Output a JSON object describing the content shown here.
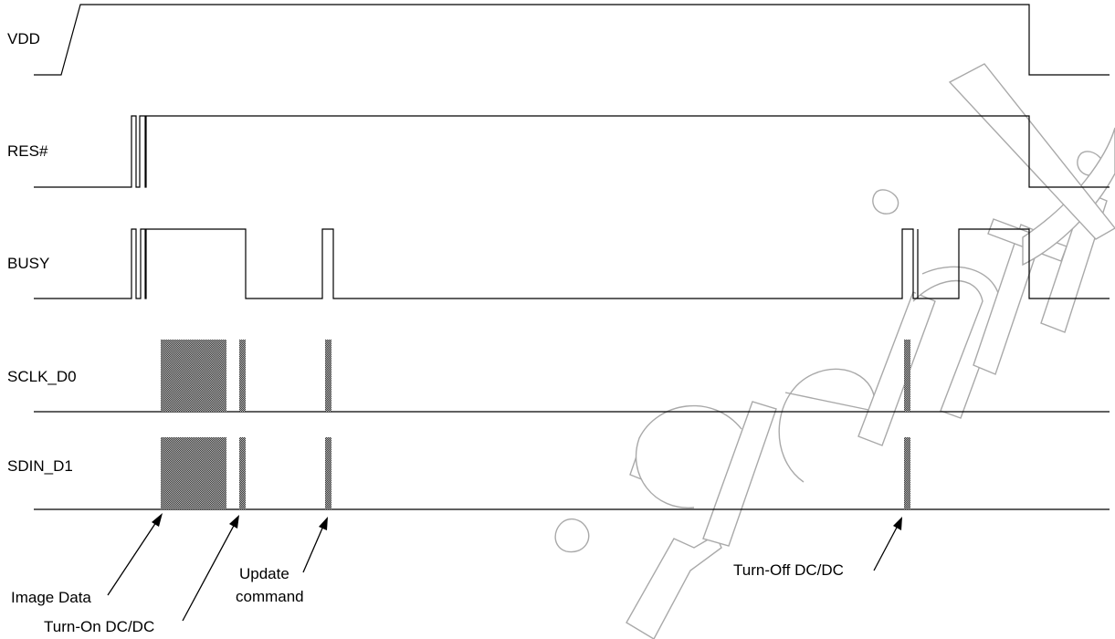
{
  "signals": {
    "vdd": "VDD",
    "res": "RES#",
    "busy": "BUSY",
    "sclk": "SCLK_D0",
    "sdin": "SDIN_D1"
  },
  "annotations": {
    "image_data": "Image Data",
    "turn_on": "Turn-On DC/DC",
    "update_line1": "Update",
    "update_line2": "command",
    "turn_off": "Turn-Off DC/DC"
  },
  "watermark": "fidential",
  "colors": {
    "line": "#000000",
    "data_fill": "#8c8c8c",
    "watermark": "#a9a9a9"
  }
}
